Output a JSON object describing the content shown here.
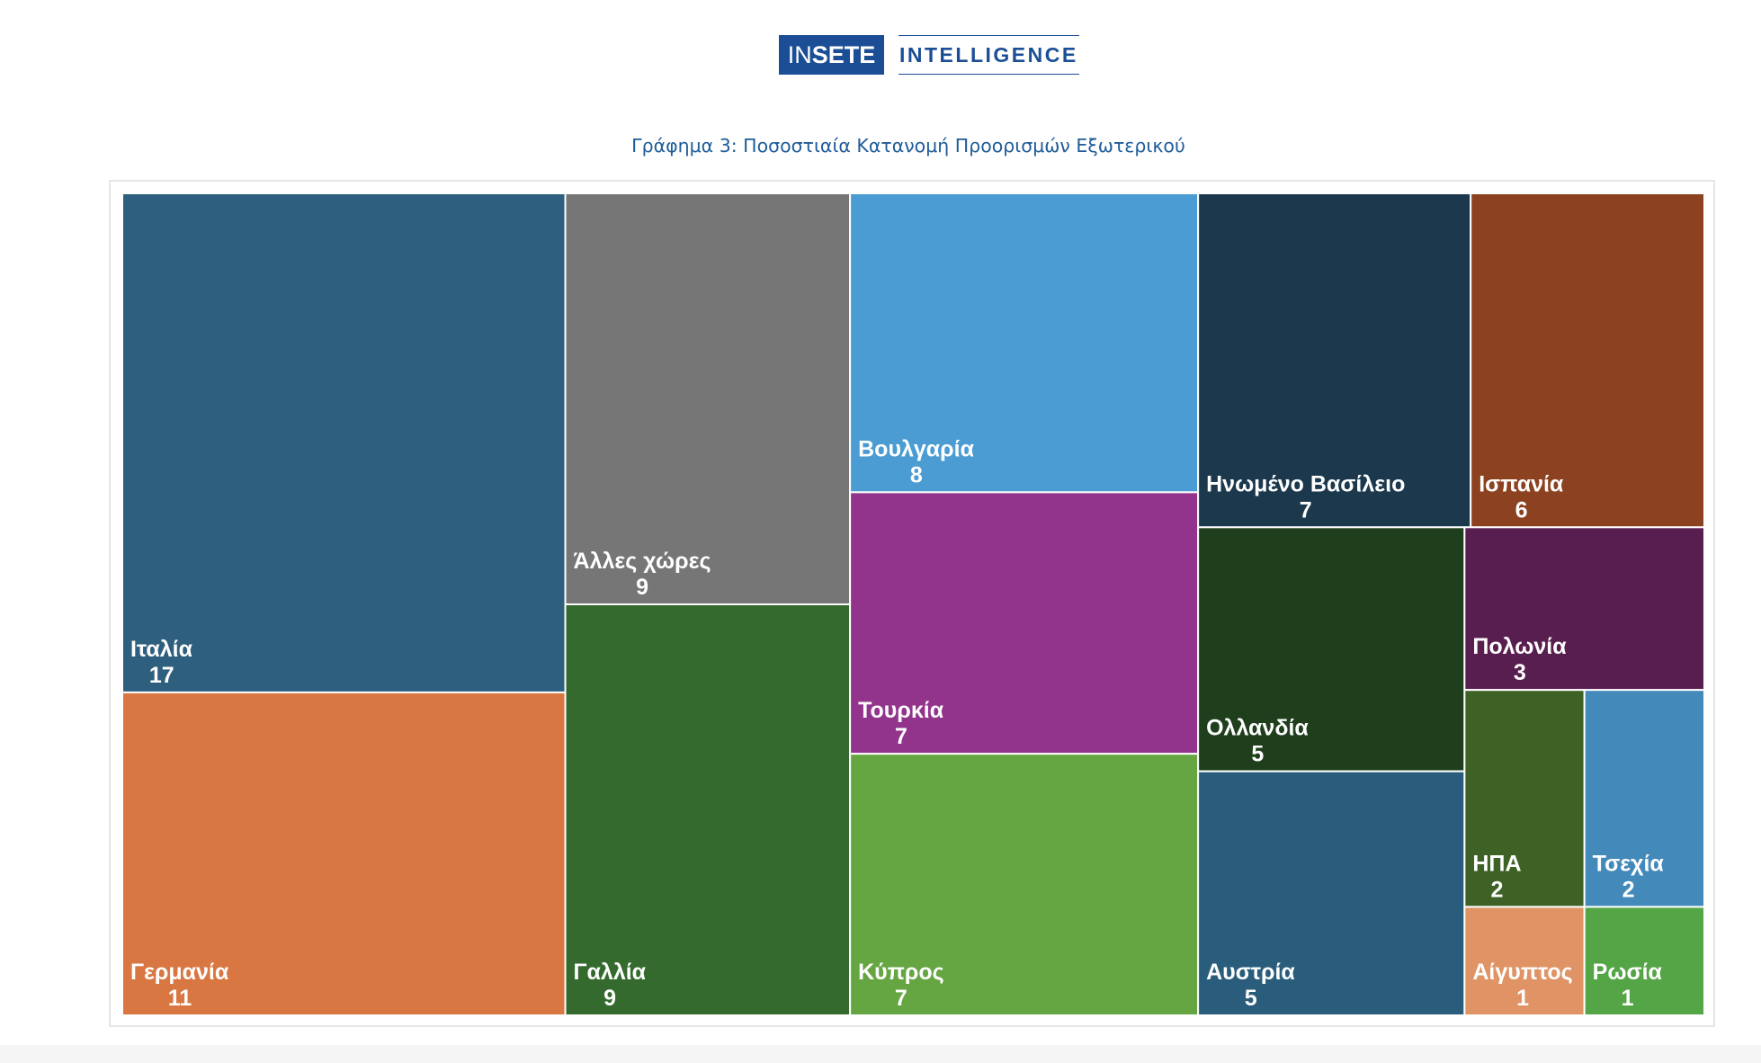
{
  "logo": {
    "part1": "IN",
    "part2": "SETE",
    "part3": "INTELLIGENCE"
  },
  "chart_data": {
    "type": "treemap",
    "title": "Γράφημα 3: Ποσοστιαία Κατανομή Προορισμών Εξωτερικού",
    "items": [
      {
        "label": "Ιταλία",
        "value": 17,
        "color": "#2e5f7e"
      },
      {
        "label": "Γερμανία",
        "value": 11,
        "color": "#d97742"
      },
      {
        "label": "Άλλες χώρες",
        "value": 9,
        "color": "#767676"
      },
      {
        "label": "Γαλλία",
        "value": 9,
        "color": "#346a2e"
      },
      {
        "label": "Βουλγαρία",
        "value": 8,
        "color": "#4a9cd3"
      },
      {
        "label": "Τουρκία",
        "value": 7,
        "color": "#93348c"
      },
      {
        "label": "Κύπρος",
        "value": 7,
        "color": "#66a642"
      },
      {
        "label": "Ηνωμένο Βασίλειο",
        "value": 7,
        "color": "#1b384d"
      },
      {
        "label": "Ισπανία",
        "value": 6,
        "color": "#8c4220"
      },
      {
        "label": "Ολλανδία",
        "value": 5,
        "color": "#1f3e1c"
      },
      {
        "label": "Αυστρία",
        "value": 5,
        "color": "#2a5d7b"
      },
      {
        "label": "Πολωνία",
        "value": 3,
        "color": "#591e50"
      },
      {
        "label": "ΗΠΑ",
        "value": 2,
        "color": "#3e6225"
      },
      {
        "label": "Τσεχία",
        "value": 2,
        "color": "#438aba"
      },
      {
        "label": "Αίγυπτος",
        "value": 1,
        "color": "#e09364"
      },
      {
        "label": "Ρωσία",
        "value": 1,
        "color": "#54a546"
      }
    ]
  }
}
